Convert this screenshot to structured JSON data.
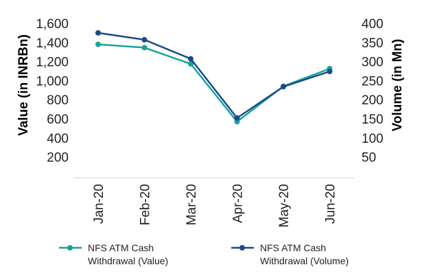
{
  "chart_data": {
    "type": "line",
    "categories": [
      "Jan-20",
      "Feb-20",
      "Mar-20",
      "Apr-20",
      "May-20",
      "Jun-20"
    ],
    "y_left": {
      "label": "Value (in INRBn)",
      "ticks": [
        "1,600",
        "1,400",
        "1,200",
        "1,000",
        "800",
        "600",
        "400",
        "200"
      ],
      "range": [
        0,
        1600
      ]
    },
    "y_right": {
      "label": "Volume (in Mn)",
      "ticks": [
        "400",
        "350",
        "300",
        "250",
        "200",
        "150",
        "100",
        "50"
      ],
      "range": [
        0,
        400
      ]
    },
    "series": [
      {
        "name": "NFS ATM Cash Withdrawal (Value)",
        "legend_lines": [
          "NFS ATM Cash",
          "Withdrawal (Value)"
        ],
        "axis": "left",
        "color": "#17a398",
        "values": [
          1380,
          1345,
          1175,
          570,
          940,
          1125
        ]
      },
      {
        "name": "NFS ATM Cash Withdrawal (Volume)",
        "legend_lines": [
          "NFS ATM Cash",
          "Withdrawal (Volume)"
        ],
        "axis": "right",
        "color": "#1a4a8c",
        "values": [
          375,
          357,
          307,
          152,
          234,
          274
        ]
      }
    ],
    "grid": false,
    "legend_position": "bottom"
  }
}
